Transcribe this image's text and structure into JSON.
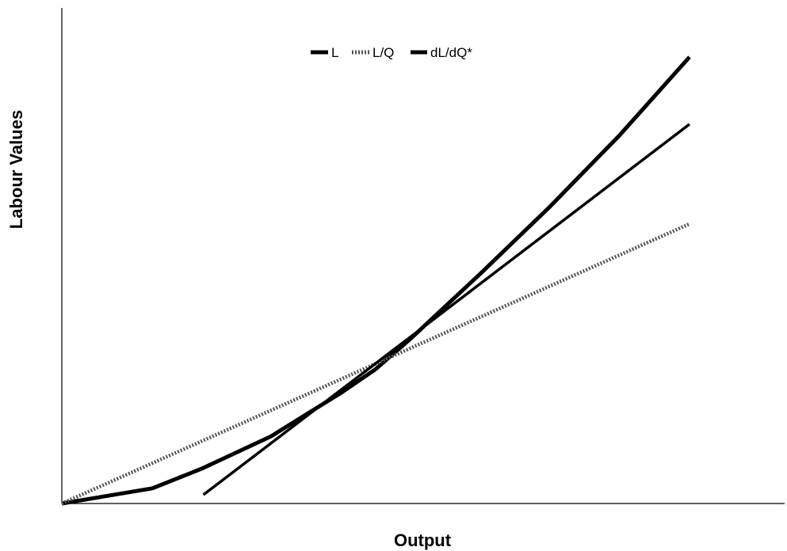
{
  "chart_data": {
    "type": "line",
    "xlabel": "Output",
    "ylabel": "Labour Values",
    "xlim": [
      0,
      10
    ],
    "ylim": [
      0,
      10
    ],
    "grid": false,
    "legend_position": "top-center",
    "ticks_shown": false,
    "series": [
      {
        "name": "L",
        "style": "solid-thick",
        "color": "#000000",
        "x": [
          0,
          1.3,
          2.0,
          3.0,
          4.0,
          4.5,
          5.0,
          6.0,
          7.0,
          8.0,
          9.0
        ],
        "y": [
          0,
          0.35,
          0.8,
          1.55,
          2.55,
          3.1,
          3.8,
          5.3,
          6.85,
          8.5,
          10.3
        ]
      },
      {
        "name": "L/Q",
        "style": "dotted",
        "color": "#555555",
        "x": [
          0,
          9.0
        ],
        "y": [
          0,
          6.45
        ]
      },
      {
        "name": "dL/dQ*",
        "style": "solid",
        "color": "#000000",
        "x": [
          2.03,
          9.0
        ],
        "y": [
          0.2,
          8.75
        ]
      }
    ]
  }
}
